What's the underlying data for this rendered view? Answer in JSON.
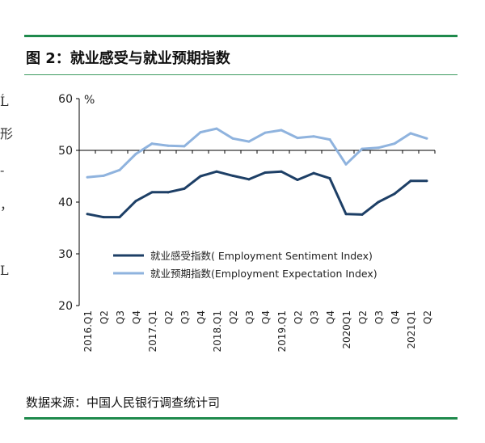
{
  "figure": {
    "title": "图 2：就业感受与就业预期指数",
    "source": "数据来源：中国人民银行调查统计司"
  },
  "left_edge_fragments": [
    "Ĺ",
    "形",
    "-",
    "，",
    "L"
  ],
  "colors": {
    "rule": "#1f8a4c",
    "sentiment": "#1d3f66",
    "expectation": "#8fb3de",
    "axis": "#000000"
  },
  "chart_data": {
    "type": "line",
    "unit_label": "%",
    "ylim": [
      20,
      60
    ],
    "yticks": [
      20,
      30,
      40,
      50,
      60
    ],
    "reference_line": 50,
    "categories": [
      "2016.Q1",
      "Q2",
      "Q3",
      "Q4",
      "2017.Q1",
      "Q2",
      "Q3",
      "Q4",
      "2018.Q1",
      "Q2",
      "Q3",
      "Q4",
      "2019.Q1",
      "Q2",
      "Q3",
      "Q4",
      "2020Q1",
      "Q2",
      "Q3",
      "Q4",
      "2021Q1",
      "Q2"
    ],
    "series": [
      {
        "name": "就业感受指数( Employment Sentiment Index)",
        "color": "#1d3f66",
        "values": [
          37.7,
          37.1,
          37.1,
          40.2,
          41.9,
          41.9,
          42.6,
          45.0,
          45.9,
          45.1,
          44.4,
          45.7,
          45.9,
          44.3,
          45.6,
          44.6,
          37.7,
          37.6,
          40.0,
          41.6,
          44.1,
          44.1
        ]
      },
      {
        "name": "就业预期指数(Employment Expectation Index)",
        "color": "#8fb3de",
        "values": [
          44.8,
          45.1,
          46.2,
          49.3,
          51.3,
          50.9,
          50.8,
          53.5,
          54.2,
          52.3,
          51.7,
          53.4,
          53.9,
          52.4,
          52.7,
          52.1,
          47.3,
          50.3,
          50.5,
          51.3,
          53.3,
          52.3
        ]
      }
    ]
  }
}
